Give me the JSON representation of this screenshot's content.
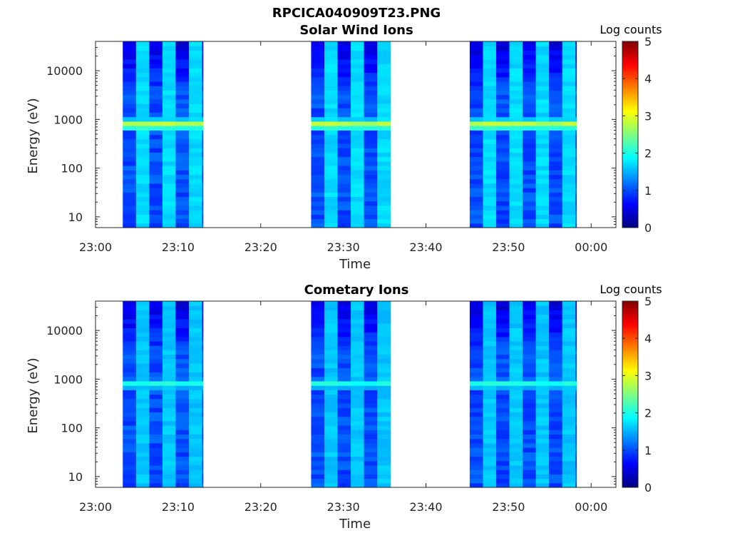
{
  "figure_title": "RPCICA040909T23.PNG",
  "chart_data": [
    {
      "type": "heatmap",
      "title": "Solar Wind Ions",
      "xlabel": "Time",
      "ylabel": "Energy (eV)",
      "x_tick_labels": [
        "23:00",
        "23:10",
        "23:20",
        "23:30",
        "23:40",
        "23:50",
        "00:00"
      ],
      "x_tick_minutes": [
        0,
        10,
        20,
        30,
        40,
        50,
        60
      ],
      "xlim_minutes": [
        0,
        63
      ],
      "y_scale": "log",
      "y_tick_labels": [
        "10",
        "100",
        "1000",
        "10000"
      ],
      "y_tick_values": [
        10,
        100,
        1000,
        10000
      ],
      "ylim": [
        6,
        40000
      ],
      "colorbar": {
        "title": "Log counts",
        "range": [
          0,
          5
        ],
        "tick_labels": [
          "0",
          "1",
          "2",
          "3",
          "4",
          "5"
        ],
        "colormap": "jet"
      },
      "data_intervals_minutes": [
        [
          3.3,
          13.0
        ],
        [
          26.1,
          35.7
        ],
        [
          45.3,
          58.2
        ]
      ],
      "column_width_minutes": 1.6,
      "peak_energy_eV": 800,
      "peak_log_counts": 2.9,
      "background_log_counts": 1.0,
      "bright_column_log_counts": 1.7
    },
    {
      "type": "heatmap",
      "title": "Cometary Ions",
      "xlabel": "Time",
      "ylabel": "Energy (eV)",
      "x_tick_labels": [
        "23:00",
        "23:10",
        "23:20",
        "23:30",
        "23:40",
        "23:50",
        "00:00"
      ],
      "x_tick_minutes": [
        0,
        10,
        20,
        30,
        40,
        50,
        60
      ],
      "xlim_minutes": [
        0,
        63
      ],
      "y_scale": "log",
      "y_tick_labels": [
        "10",
        "100",
        "1000",
        "10000"
      ],
      "y_tick_values": [
        10,
        100,
        1000,
        10000
      ],
      "ylim": [
        6,
        40000
      ],
      "colorbar": {
        "title": "Log counts",
        "range": [
          0,
          5
        ],
        "tick_labels": [
          "0",
          "1",
          "2",
          "3",
          "4",
          "5"
        ],
        "colormap": "jet"
      },
      "data_intervals_minutes": [
        [
          3.3,
          13.0
        ],
        [
          26.1,
          35.7
        ],
        [
          45.3,
          58.2
        ]
      ],
      "column_width_minutes": 1.6,
      "peak_energy_eV": 800,
      "peak_log_counts": 2.1,
      "background_log_counts": 1.0,
      "bright_column_log_counts": 1.6
    }
  ]
}
